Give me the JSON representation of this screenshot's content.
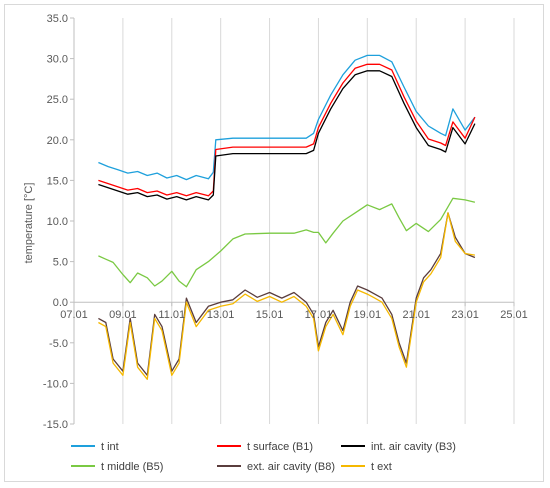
{
  "chart_data": {
    "type": "line",
    "title": "",
    "xlabel": "",
    "ylabel": "temperature [°C]",
    "xlim": [
      "07.01",
      "25.01"
    ],
    "ylim": [
      -15,
      35
    ],
    "x_ticks": [
      "07.01",
      "09.01",
      "11.01",
      "13.01",
      "15.01",
      "17.01",
      "19.01",
      "21.01",
      "23.01",
      "25.01"
    ],
    "x_tick_values": [
      7,
      9,
      11,
      13,
      15,
      17,
      19,
      21,
      23,
      25
    ],
    "y_ticks": [
      "-15.0",
      "-10.0",
      "-5.0",
      "0.0",
      "5.0",
      "10.0",
      "15.0",
      "20.0",
      "25.0",
      "30.0",
      "35.0"
    ],
    "y_tick_values": [
      -15,
      -10,
      -5,
      0,
      5,
      10,
      15,
      20,
      25,
      30,
      35
    ],
    "grid": "vertical",
    "legend_position": "bottom",
    "series": [
      {
        "name": "t int",
        "color": "#1ea0dc",
        "x": [
          8.0,
          8.4,
          8.8,
          9.2,
          9.6,
          10.0,
          10.4,
          10.8,
          11.2,
          11.6,
          12.0,
          12.5,
          12.7,
          12.8,
          13.5,
          14.5,
          15.5,
          16.5,
          16.8,
          17.0,
          17.5,
          18.0,
          18.5,
          19.0,
          19.5,
          20.0,
          20.5,
          21.0,
          21.5,
          22.0,
          22.2,
          22.5,
          23.0,
          23.4
        ],
        "values": [
          17.2,
          16.7,
          16.3,
          15.9,
          16.1,
          15.6,
          15.9,
          15.3,
          15.6,
          15.1,
          15.6,
          15.2,
          16.0,
          20.0,
          20.2,
          20.2,
          20.2,
          20.2,
          20.8,
          22.5,
          25.5,
          28.0,
          29.8,
          30.4,
          30.4,
          29.6,
          26.5,
          23.5,
          21.7,
          20.8,
          20.5,
          23.8,
          21.2,
          22.8
        ]
      },
      {
        "name": "t surface (B1)",
        "color": "#ff0000",
        "x": [
          8.0,
          8.4,
          8.8,
          9.2,
          9.6,
          10.0,
          10.4,
          10.8,
          11.2,
          11.6,
          12.0,
          12.5,
          12.7,
          12.8,
          13.5,
          14.5,
          15.5,
          16.5,
          16.8,
          17.0,
          17.5,
          18.0,
          18.5,
          19.0,
          19.5,
          20.0,
          20.5,
          21.0,
          21.5,
          22.0,
          22.2,
          22.5,
          23.0,
          23.4
        ],
        "values": [
          15.0,
          14.6,
          14.2,
          13.8,
          14.0,
          13.5,
          13.7,
          13.2,
          13.5,
          13.1,
          13.5,
          13.1,
          13.7,
          18.8,
          19.1,
          19.1,
          19.1,
          19.1,
          19.5,
          21.5,
          24.5,
          27.0,
          28.8,
          29.3,
          29.3,
          28.6,
          25.3,
          22.3,
          20.1,
          19.6,
          19.3,
          22.2,
          20.2,
          22.8
        ]
      },
      {
        "name": "int. air cavity (B3)",
        "color": "#000000",
        "x": [
          8.0,
          8.4,
          8.8,
          9.2,
          9.6,
          10.0,
          10.4,
          10.8,
          11.2,
          11.6,
          12.0,
          12.5,
          12.7,
          12.8,
          13.5,
          14.5,
          15.5,
          16.5,
          16.8,
          17.0,
          17.5,
          18.0,
          18.5,
          19.0,
          19.5,
          20.0,
          20.5,
          21.0,
          21.5,
          22.0,
          22.2,
          22.5,
          23.0,
          23.4
        ],
        "values": [
          14.5,
          14.1,
          13.7,
          13.3,
          13.5,
          13.0,
          13.2,
          12.7,
          13.0,
          12.6,
          13.0,
          12.6,
          13.2,
          18.0,
          18.3,
          18.3,
          18.3,
          18.3,
          18.7,
          20.8,
          23.8,
          26.3,
          28.0,
          28.5,
          28.5,
          27.8,
          24.5,
          21.5,
          19.3,
          18.8,
          18.5,
          21.5,
          19.5,
          22.0
        ]
      },
      {
        "name": "t middle (B5)",
        "color": "#7ac943",
        "x": [
          8.0,
          8.3,
          8.6,
          9.0,
          9.3,
          9.6,
          10.0,
          10.3,
          10.6,
          11.0,
          11.3,
          11.6,
          12.0,
          12.5,
          13.0,
          13.5,
          14.0,
          15.0,
          16.0,
          16.5,
          16.8,
          17.0,
          17.3,
          17.6,
          18.0,
          18.5,
          19.0,
          19.5,
          20.0,
          20.3,
          20.6,
          21.0,
          21.5,
          22.0,
          22.5,
          23.0,
          23.4
        ],
        "values": [
          5.7,
          5.3,
          4.9,
          3.4,
          2.4,
          3.6,
          3.0,
          2.0,
          2.6,
          3.8,
          2.6,
          1.9,
          4.0,
          5.0,
          6.3,
          7.8,
          8.4,
          8.5,
          8.5,
          8.9,
          8.6,
          8.6,
          7.3,
          8.5,
          10.0,
          11.0,
          12.0,
          11.4,
          12.1,
          10.4,
          8.8,
          9.7,
          8.7,
          10.2,
          12.8,
          12.6,
          12.3
        ]
      },
      {
        "name": "ext. air cavity (B8)",
        "color": "#5a3d3d",
        "x": [
          8.0,
          8.3,
          8.6,
          9.0,
          9.3,
          9.6,
          10.0,
          10.3,
          10.6,
          11.0,
          11.3,
          11.6,
          12.0,
          12.5,
          13.0,
          13.5,
          14.0,
          14.5,
          15.0,
          15.5,
          16.0,
          16.5,
          16.8,
          17.0,
          17.3,
          17.6,
          18.0,
          18.3,
          18.6,
          19.0,
          19.3,
          19.6,
          20.0,
          20.3,
          20.6,
          21.0,
          21.3,
          21.6,
          22.0,
          22.3,
          22.6,
          23.0,
          23.4
        ],
        "values": [
          -2.0,
          -2.5,
          -7.0,
          -8.5,
          -2.0,
          -7.5,
          -9.0,
          -1.5,
          -3.0,
          -8.5,
          -7.0,
          0.5,
          -2.5,
          -0.5,
          0.0,
          0.3,
          1.5,
          0.6,
          1.2,
          0.5,
          1.2,
          0.0,
          -1.5,
          -5.5,
          -2.5,
          -1.0,
          -3.5,
          0.0,
          2.0,
          1.5,
          1.0,
          0.5,
          -1.5,
          -5.0,
          -7.5,
          0.5,
          3.0,
          4.0,
          6.0,
          11.0,
          8.0,
          6.0,
          5.5
        ]
      },
      {
        "name": "t ext",
        "color": "#f5b800",
        "x": [
          8.0,
          8.3,
          8.6,
          9.0,
          9.3,
          9.6,
          10.0,
          10.3,
          10.6,
          11.0,
          11.3,
          11.6,
          12.0,
          12.5,
          13.0,
          13.5,
          14.0,
          14.5,
          15.0,
          15.5,
          16.0,
          16.5,
          16.8,
          17.0,
          17.3,
          17.6,
          18.0,
          18.3,
          18.6,
          19.0,
          19.3,
          19.6,
          20.0,
          20.3,
          20.6,
          21.0,
          21.3,
          21.6,
          22.0,
          22.3,
          22.6,
          23.0,
          23.4
        ],
        "values": [
          -2.5,
          -3.0,
          -7.5,
          -9.0,
          -2.5,
          -8.0,
          -9.5,
          -2.0,
          -3.5,
          -9.0,
          -7.5,
          0.0,
          -3.0,
          -1.0,
          -0.5,
          -0.2,
          1.0,
          0.1,
          0.7,
          0.0,
          0.7,
          -0.5,
          -2.0,
          -6.0,
          -3.0,
          -1.5,
          -4.0,
          -0.5,
          1.5,
          1.0,
          0.5,
          0.0,
          -2.0,
          -5.5,
          -8.0,
          0.0,
          2.5,
          3.5,
          5.5,
          11.0,
          7.5,
          6.0,
          5.8
        ]
      }
    ]
  }
}
